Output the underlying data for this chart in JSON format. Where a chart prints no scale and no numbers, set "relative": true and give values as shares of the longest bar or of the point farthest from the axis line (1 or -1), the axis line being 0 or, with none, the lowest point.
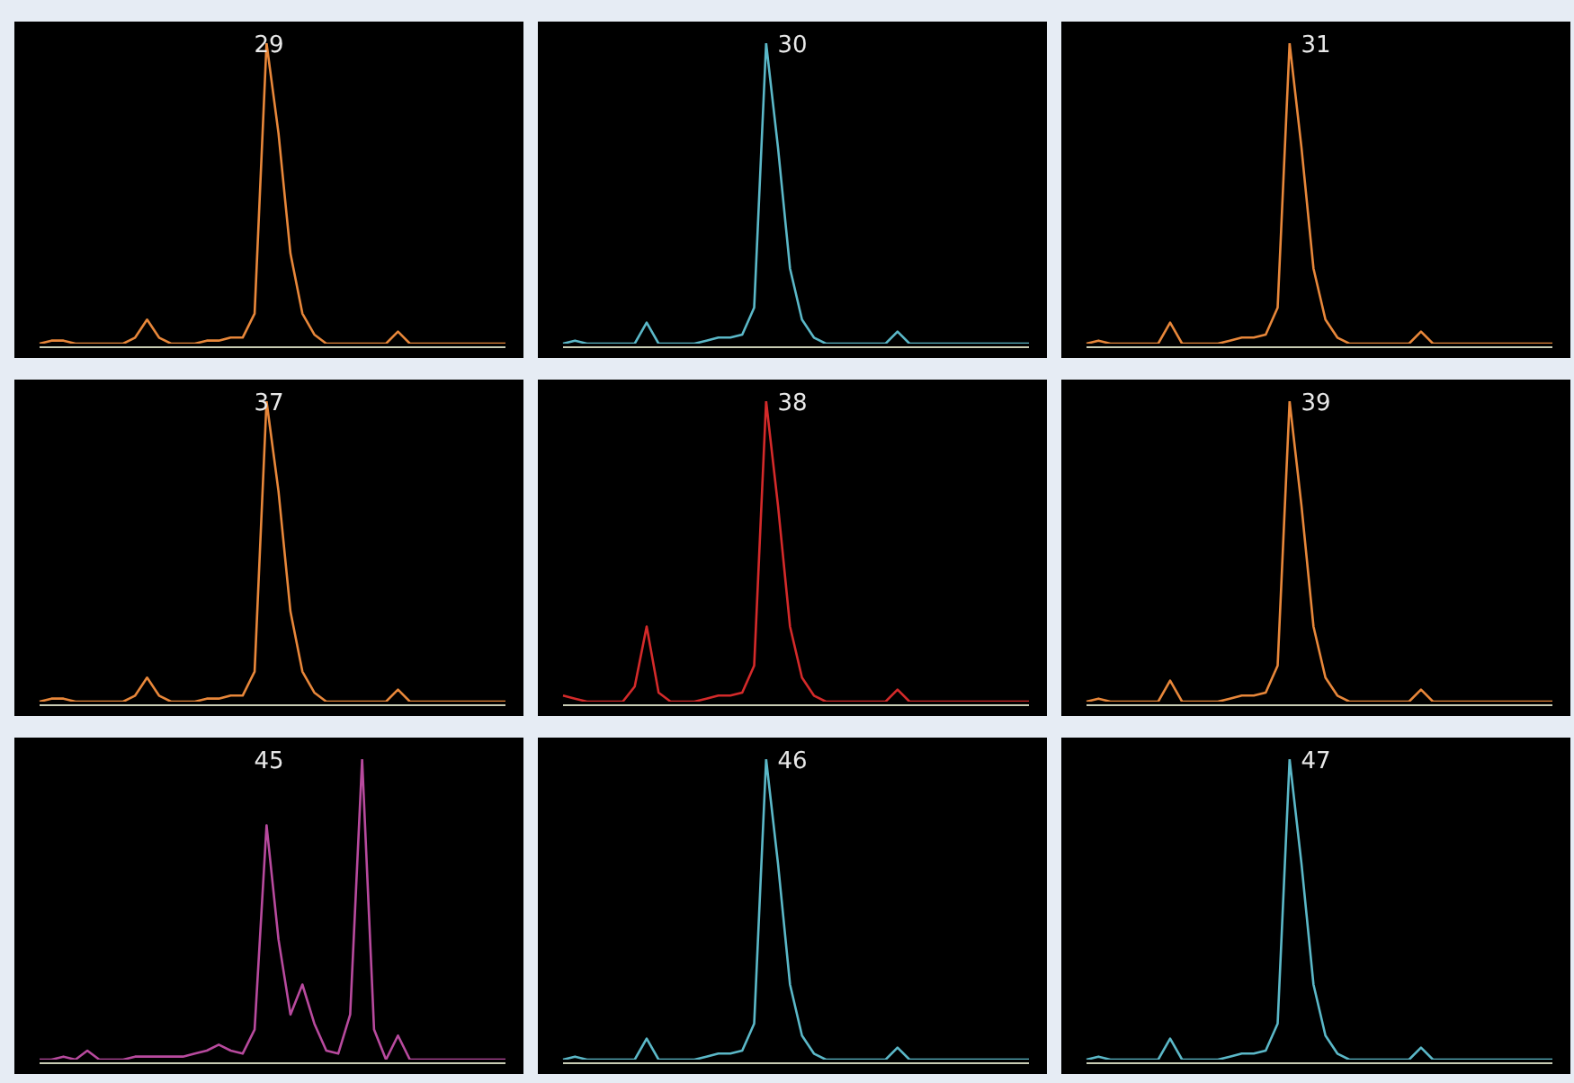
{
  "chart_data": [
    {
      "type": "line",
      "title": "29",
      "relative": true,
      "tick_labels": false,
      "marker": "none",
      "categories": [
        null,
        null,
        null,
        null,
        null,
        null,
        null,
        null,
        null,
        null,
        null,
        null,
        null,
        null,
        null,
        null,
        null,
        null,
        null,
        null,
        null,
        null,
        null,
        null,
        null,
        null,
        null,
        null,
        null,
        null,
        null,
        null,
        null,
        null,
        null,
        null,
        null,
        null,
        null,
        null
      ],
      "series": [
        {
          "color": "#e8873a",
          "values": [
            0,
            0.01,
            0.01,
            0,
            0,
            0,
            0,
            0,
            0.02,
            0.08,
            0.02,
            0,
            0,
            0,
            0.01,
            0.01,
            0.02,
            0.02,
            0.1,
            1,
            0.7,
            0.3,
            0.1,
            0.03,
            0,
            0,
            0,
            0,
            0,
            0,
            0.04,
            0,
            0,
            0,
            0,
            0,
            0,
            0,
            0,
            0
          ]
        }
      ]
    },
    {
      "type": "line",
      "title": "30",
      "relative": true,
      "tick_labels": false,
      "marker": "none",
      "categories": [
        null,
        null,
        null,
        null,
        null,
        null,
        null,
        null,
        null,
        null,
        null,
        null,
        null,
        null,
        null,
        null,
        null,
        null,
        null,
        null,
        null,
        null,
        null,
        null,
        null,
        null,
        null,
        null,
        null,
        null,
        null,
        null,
        null,
        null,
        null,
        null,
        null,
        null,
        null,
        null
      ],
      "series": [
        {
          "color": "#5bb8c8",
          "values": [
            0,
            0.01,
            0,
            0,
            0,
            0,
            0,
            0.07,
            0,
            0,
            0,
            0,
            0.01,
            0.02,
            0.02,
            0.03,
            0.12,
            1,
            0.65,
            0.25,
            0.08,
            0.02,
            0,
            0,
            0,
            0,
            0,
            0,
            0.04,
            0,
            0,
            0,
            0,
            0,
            0,
            0,
            0,
            0,
            0,
            0
          ]
        }
      ]
    },
    {
      "type": "line",
      "title": "31",
      "relative": true,
      "tick_labels": false,
      "marker": "none",
      "categories": [
        null,
        null,
        null,
        null,
        null,
        null,
        null,
        null,
        null,
        null,
        null,
        null,
        null,
        null,
        null,
        null,
        null,
        null,
        null,
        null,
        null,
        null,
        null,
        null,
        null,
        null,
        null,
        null,
        null,
        null,
        null,
        null,
        null,
        null,
        null,
        null,
        null,
        null,
        null,
        null
      ],
      "series": [
        {
          "color": "#e8873a",
          "values": [
            0,
            0.01,
            0,
            0,
            0,
            0,
            0,
            0.07,
            0,
            0,
            0,
            0,
            0.01,
            0.02,
            0.02,
            0.03,
            0.12,
            1,
            0.65,
            0.25,
            0.08,
            0.02,
            0,
            0,
            0,
            0,
            0,
            0,
            0.04,
            0,
            0,
            0,
            0,
            0,
            0,
            0,
            0,
            0,
            0,
            0
          ]
        }
      ]
    },
    {
      "type": "line",
      "title": "37",
      "relative": true,
      "tick_labels": false,
      "marker": "none",
      "categories": [
        null,
        null,
        null,
        null,
        null,
        null,
        null,
        null,
        null,
        null,
        null,
        null,
        null,
        null,
        null,
        null,
        null,
        null,
        null,
        null,
        null,
        null,
        null,
        null,
        null,
        null,
        null,
        null,
        null,
        null,
        null,
        null,
        null,
        null,
        null,
        null,
        null,
        null,
        null,
        null
      ],
      "series": [
        {
          "color": "#e8873a",
          "values": [
            0,
            0.01,
            0.01,
            0,
            0,
            0,
            0,
            0,
            0.02,
            0.08,
            0.02,
            0,
            0,
            0,
            0.01,
            0.01,
            0.02,
            0.02,
            0.1,
            1,
            0.7,
            0.3,
            0.1,
            0.03,
            0,
            0,
            0,
            0,
            0,
            0,
            0.04,
            0,
            0,
            0,
            0,
            0,
            0,
            0,
            0,
            0
          ]
        }
      ]
    },
    {
      "type": "line",
      "title": "38",
      "relative": true,
      "tick_labels": false,
      "marker": "none",
      "categories": [
        null,
        null,
        null,
        null,
        null,
        null,
        null,
        null,
        null,
        null,
        null,
        null,
        null,
        null,
        null,
        null,
        null,
        null,
        null,
        null,
        null,
        null,
        null,
        null,
        null,
        null,
        null,
        null,
        null,
        null,
        null,
        null,
        null,
        null,
        null,
        null,
        null,
        null,
        null,
        null
      ],
      "series": [
        {
          "color": "#d42a2a",
          "values": [
            0.02,
            0.01,
            0,
            0,
            0,
            0,
            0.05,
            0.25,
            0.03,
            0,
            0,
            0,
            0.01,
            0.02,
            0.02,
            0.03,
            0.12,
            1,
            0.65,
            0.25,
            0.08,
            0.02,
            0,
            0,
            0,
            0,
            0,
            0,
            0.04,
            0,
            0,
            0,
            0,
            0,
            0,
            0,
            0,
            0,
            0,
            0
          ]
        }
      ]
    },
    {
      "type": "line",
      "title": "39",
      "relative": true,
      "tick_labels": false,
      "marker": "none",
      "categories": [
        null,
        null,
        null,
        null,
        null,
        null,
        null,
        null,
        null,
        null,
        null,
        null,
        null,
        null,
        null,
        null,
        null,
        null,
        null,
        null,
        null,
        null,
        null,
        null,
        null,
        null,
        null,
        null,
        null,
        null,
        null,
        null,
        null,
        null,
        null,
        null,
        null,
        null,
        null,
        null
      ],
      "series": [
        {
          "color": "#e8873a",
          "values": [
            0,
            0.01,
            0,
            0,
            0,
            0,
            0,
            0.07,
            0,
            0,
            0,
            0,
            0.01,
            0.02,
            0.02,
            0.03,
            0.12,
            1,
            0.65,
            0.25,
            0.08,
            0.02,
            0,
            0,
            0,
            0,
            0,
            0,
            0.04,
            0,
            0,
            0,
            0,
            0,
            0,
            0,
            0,
            0,
            0,
            0
          ]
        }
      ]
    },
    {
      "type": "line",
      "title": "45",
      "relative": true,
      "tick_labels": false,
      "marker": "none",
      "categories": [
        null,
        null,
        null,
        null,
        null,
        null,
        null,
        null,
        null,
        null,
        null,
        null,
        null,
        null,
        null,
        null,
        null,
        null,
        null,
        null,
        null,
        null,
        null,
        null,
        null,
        null,
        null,
        null,
        null,
        null,
        null,
        null,
        null,
        null,
        null,
        null,
        null,
        null,
        null,
        null
      ],
      "series": [
        {
          "color": "#b84a9e",
          "values": [
            0,
            0,
            0.01,
            0,
            0.03,
            0,
            0,
            0,
            0.01,
            0.01,
            0.01,
            0.01,
            0.01,
            0.02,
            0.03,
            0.05,
            0.03,
            0.02,
            0.1,
            0.78,
            0.4,
            0.15,
            0.25,
            0.12,
            0.03,
            0.02,
            0.15,
            1,
            0.1,
            0,
            0.08,
            0,
            0,
            0,
            0,
            0,
            0,
            0,
            0,
            0
          ]
        }
      ]
    },
    {
      "type": "line",
      "title": "46",
      "relative": true,
      "tick_labels": false,
      "marker": "none",
      "categories": [
        null,
        null,
        null,
        null,
        null,
        null,
        null,
        null,
        null,
        null,
        null,
        null,
        null,
        null,
        null,
        null,
        null,
        null,
        null,
        null,
        null,
        null,
        null,
        null,
        null,
        null,
        null,
        null,
        null,
        null,
        null,
        null,
        null,
        null,
        null,
        null,
        null,
        null,
        null,
        null
      ],
      "series": [
        {
          "color": "#5bb8c8",
          "values": [
            0,
            0.01,
            0,
            0,
            0,
            0,
            0,
            0.07,
            0,
            0,
            0,
            0,
            0.01,
            0.02,
            0.02,
            0.03,
            0.12,
            1,
            0.65,
            0.25,
            0.08,
            0.02,
            0,
            0,
            0,
            0,
            0,
            0,
            0.04,
            0,
            0,
            0,
            0,
            0,
            0,
            0,
            0,
            0,
            0,
            0
          ]
        }
      ]
    },
    {
      "type": "line",
      "title": "47",
      "relative": true,
      "tick_labels": false,
      "marker": "none",
      "categories": [
        null,
        null,
        null,
        null,
        null,
        null,
        null,
        null,
        null,
        null,
        null,
        null,
        null,
        null,
        null,
        null,
        null,
        null,
        null,
        null,
        null,
        null,
        null,
        null,
        null,
        null,
        null,
        null,
        null,
        null,
        null,
        null,
        null,
        null,
        null,
        null,
        null,
        null,
        null,
        null
      ],
      "series": [
        {
          "color": "#5bb8c8",
          "values": [
            0,
            0.01,
            0,
            0,
            0,
            0,
            0,
            0.07,
            0,
            0,
            0,
            0,
            0.01,
            0.02,
            0.02,
            0.03,
            0.12,
            1,
            0.65,
            0.25,
            0.08,
            0.02,
            0,
            0,
            0,
            0,
            0,
            0,
            0.04,
            0,
            0,
            0,
            0,
            0,
            0,
            0,
            0,
            0,
            0,
            0
          ]
        }
      ]
    }
  ]
}
